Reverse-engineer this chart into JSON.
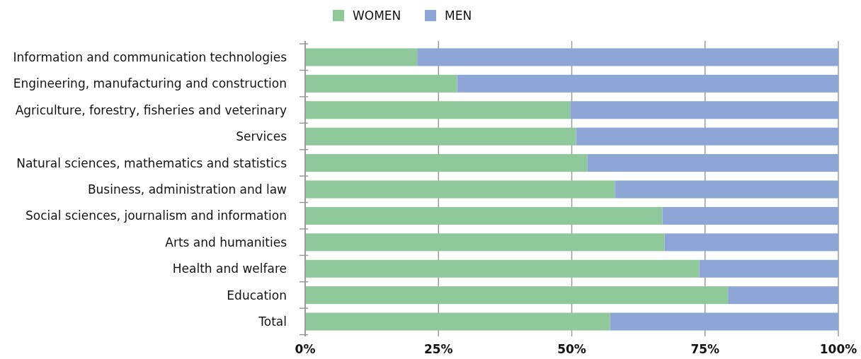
{
  "chart_data": {
    "type": "bar",
    "orientation": "horizontal",
    "stacked": true,
    "categories": [
      "Information and communication technologies",
      "Engineering, manufacturing and construction",
      "Agriculture, forestry, fisheries and veterinary",
      "Services",
      "Natural sciences, mathematics and statistics",
      "Business, administration and law",
      "Social sciences, journalism and information",
      "Arts and humanities",
      "Health and welfare",
      "Education",
      "Total"
    ],
    "series": [
      {
        "name": "WOMEN",
        "color": "#8fc89a",
        "values": [
          21.0,
          28.5,
          49.7,
          50.8,
          52.9,
          58.1,
          67.0,
          67.4,
          73.9,
          79.3,
          57.2
        ]
      },
      {
        "name": "MEN",
        "color": "#8ea6d6",
        "values": [
          79.0,
          71.5,
          50.3,
          49.2,
          47.1,
          41.9,
          33.0,
          32.6,
          26.1,
          20.7,
          42.8
        ]
      }
    ],
    "xlim": [
      0,
      100
    ],
    "xticks": [
      {
        "value": 0,
        "label": "0%"
      },
      {
        "value": 25,
        "label": "25%"
      },
      {
        "value": 50,
        "label": "50%"
      },
      {
        "value": 75,
        "label": "75%"
      },
      {
        "value": 100,
        "label": "100%"
      }
    ],
    "grid": "x",
    "legend": "top"
  }
}
